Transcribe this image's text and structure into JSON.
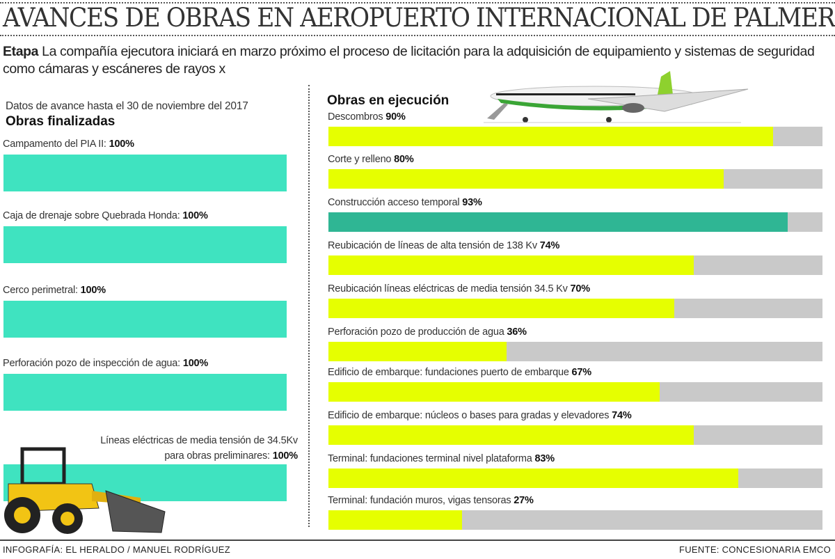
{
  "header": {
    "title": "AVANCES DE OBRAS EN AEROPUERTO INTERNACIONAL DE  PALMEROLA",
    "intro_bold": "Etapa",
    "intro_text": " La compañía ejecutora iniciará en marzo próximo el proceso de licitación para la adquisición de equipamiento y sistemas de seguridad como cámaras y escáneres de rayos x"
  },
  "left": {
    "date_note": "Datos de avance hasta el 30 de noviembre del 2017",
    "heading": "Obras finalizadas"
  },
  "right": {
    "heading": "Obras en ejecución"
  },
  "footer": {
    "credit": "INFOGRAFÍA: EL HERALDO / MANUEL RODRÍGUEZ",
    "source": "FUENTE: CONCESIONARIA EMCO"
  },
  "colors": {
    "finished": "#3fe3c0",
    "in_progress": "#e6ff00",
    "highlight": "#2fb694",
    "remaining": "#c9c9c9"
  },
  "icons": [
    "airplane-illustration",
    "backhoe-loader-illustration"
  ],
  "chart_data": [
    {
      "type": "bar",
      "orientation": "horizontal",
      "title": "Obras finalizadas",
      "xlim": [
        0,
        100
      ],
      "categories": [
        "Campamento del PIA II:",
        "Caja de drenaje sobre Quebrada  Honda:",
        "Cerco perimetral:",
        "Perforación pozo de inspección de agua:",
        "Líneas eléctricas de media tensión de 34.5Kv para obras preliminares:"
      ],
      "values": [
        100,
        100,
        100,
        100,
        100
      ],
      "labels": [
        "100%",
        "100%",
        "100%",
        "100%",
        "100%"
      ]
    },
    {
      "type": "bar",
      "orientation": "horizontal",
      "title": "Obras en ejecución",
      "xlim": [
        0,
        100
      ],
      "categories": [
        "Descombros",
        "Corte y relleno",
        "Construcción acceso temporal",
        "Reubicación de líneas  de alta tensión  de 138 Kv",
        "Reubicación líneas eléctricas de media tensión 34.5 Kv",
        "Perforación pozo de producción de agua",
        "Edificio de embarque: fundaciones puerto de embarque",
        "Edificio de embarque: núcleos o bases para gradas y elevadores",
        "Terminal: fundaciones terminal nivel plataforma",
        "Terminal: fundación muros,  vigas tensoras"
      ],
      "values": [
        90,
        80,
        93,
        74,
        70,
        36,
        67,
        74,
        83,
        27
      ],
      "labels": [
        "90%",
        "80%",
        "93%",
        "74%",
        "70%",
        "36%",
        "67%",
        "74%",
        "83%",
        "27%"
      ],
      "highlighted": [
        2
      ]
    }
  ]
}
